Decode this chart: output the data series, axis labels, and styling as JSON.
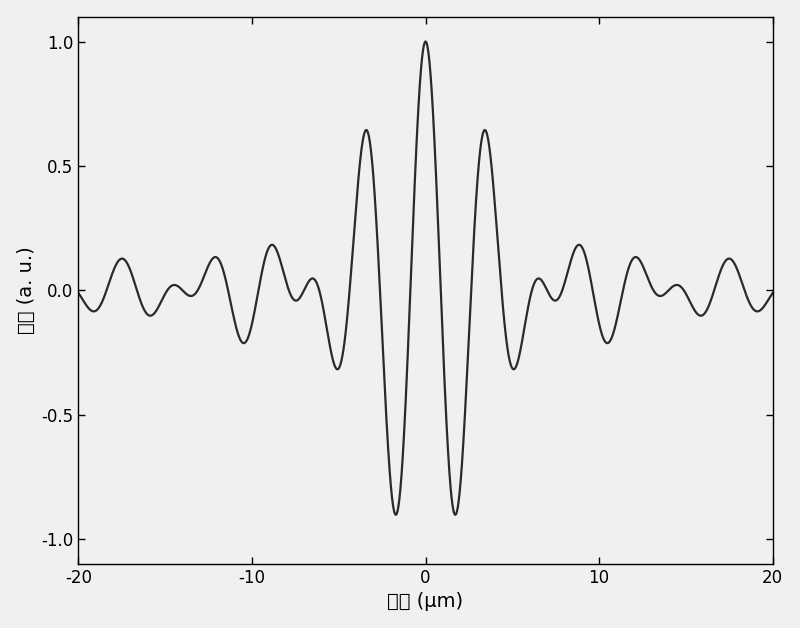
{
  "xlim": [
    -20,
    20
  ],
  "ylim": [
    -1.1,
    1.1
  ],
  "yticks": [
    -1,
    -0.5,
    0,
    0.5,
    1
  ],
  "xticks": [
    -20,
    -10,
    0,
    10,
    20
  ],
  "xlabel": "位置 (μm)",
  "ylabel": "场强 (a. u.)",
  "line_color": "#2a2a2a",
  "line_width": 1.6,
  "bg_color": "#f0f0f0",
  "fig_width": 8.0,
  "fig_height": 6.28,
  "gaussian_sigma": 6.5,
  "carrier_period": 3.5,
  "font_size": 14,
  "tick_fontsize": 12
}
